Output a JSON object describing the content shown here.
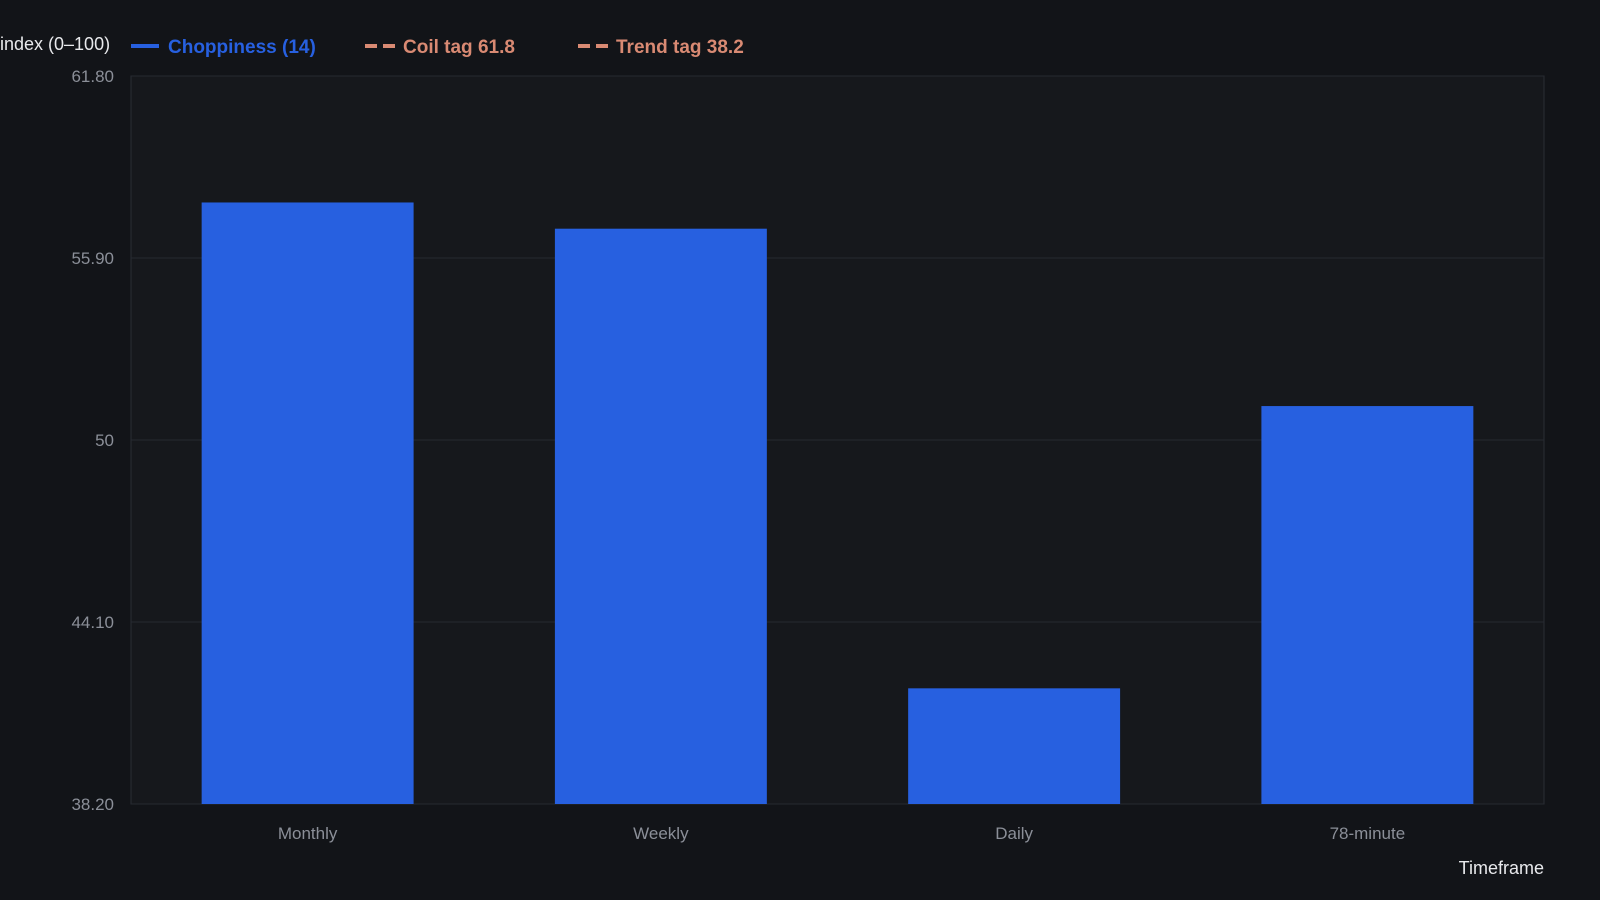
{
  "chart_data": {
    "type": "bar",
    "ylabel": "index (0–100)",
    "xlabel": "Timeframe",
    "categories": [
      "Monthly",
      "Weekly",
      "Daily",
      "78-minute"
    ],
    "series": [
      {
        "name": "Choppiness (14)",
        "color": "#2760e0",
        "values": [
          57.7,
          56.85,
          41.95,
          51.1
        ]
      }
    ],
    "reference_lines": [
      {
        "name": "Coil tag 61.8",
        "value": 61.8,
        "color": "#d98a73",
        "style": "dashed"
      },
      {
        "name": "Trend tag 38.2",
        "value": 38.2,
        "color": "#d98a73",
        "style": "dashed"
      }
    ],
    "ylim": [
      38.2,
      61.8
    ],
    "yticks": [
      38.2,
      44.1,
      50,
      55.9,
      61.8
    ],
    "ytick_labels": [
      "38.20",
      "44.10",
      "50",
      "55.90",
      "61.80"
    ],
    "grid": true,
    "legend_position": "top-left",
    "colors": {
      "background": "#121418",
      "plot_background": "#16181c",
      "grid": "#262a31",
      "axis_text": "#8b8f98",
      "title_text": "#e8e9ec"
    }
  }
}
